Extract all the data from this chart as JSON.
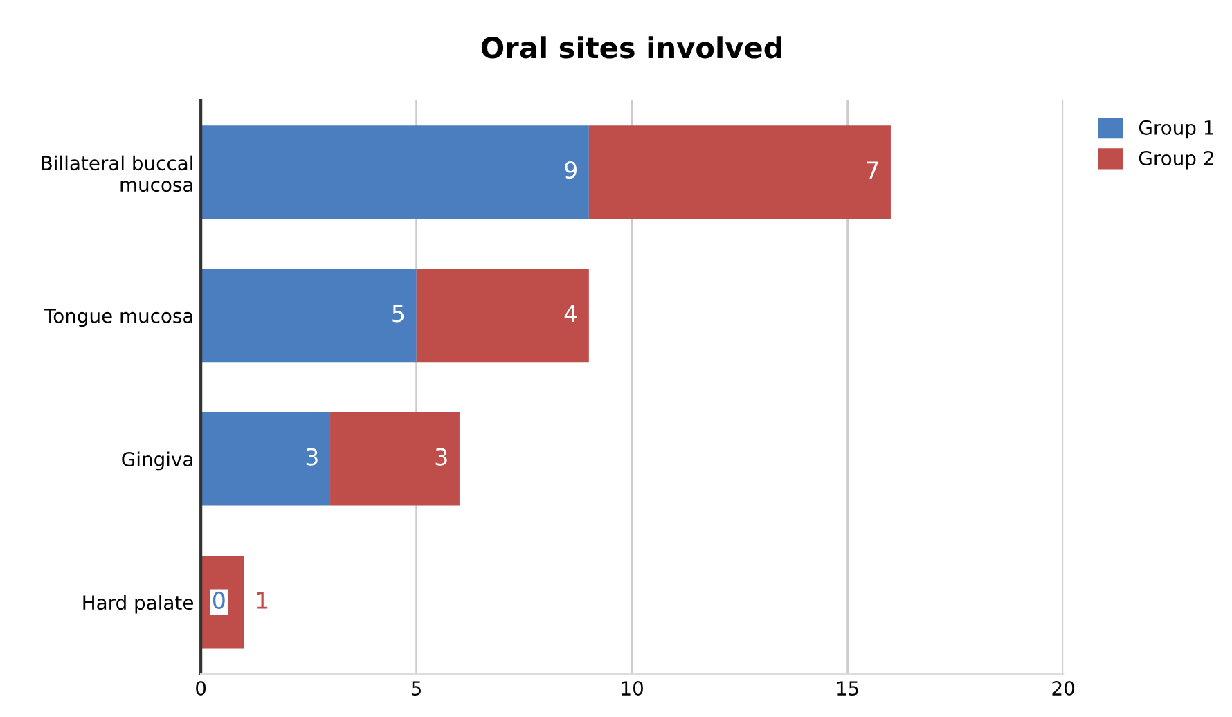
{
  "chart_data": {
    "type": "bar",
    "title": "Oral sites involved",
    "orientation": "horizontal",
    "stacked": true,
    "categories": [
      "Billateral buccal\nmucosa",
      "Tongue mucosa",
      "Gingiva",
      "Hard palate"
    ],
    "series": [
      {
        "name": "Group 1",
        "color": "#4a7ebf",
        "values": [
          9,
          5,
          3,
          0
        ]
      },
      {
        "name": "Group 2",
        "color": "#bf4d4a",
        "values": [
          7,
          4,
          3,
          1
        ]
      }
    ],
    "xlim": [
      0,
      20
    ],
    "xticks": [
      0,
      5,
      10,
      15,
      20
    ],
    "grid": "x",
    "legend": "top right",
    "data_labels": true
  }
}
